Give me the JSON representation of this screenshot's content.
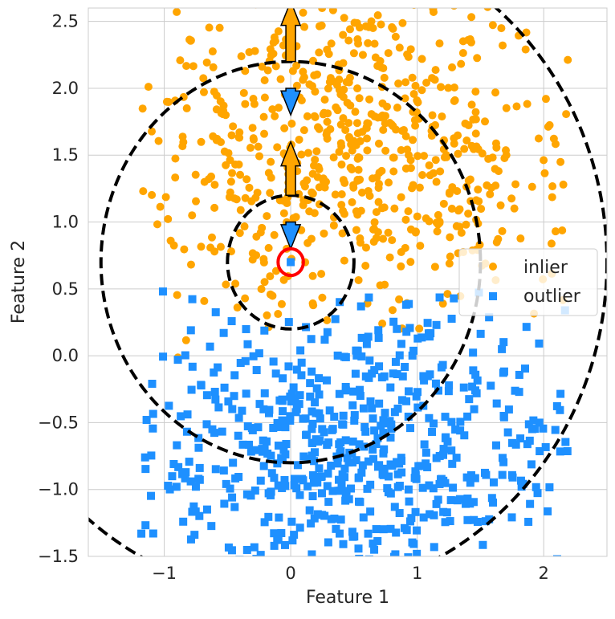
{
  "chart_data": {
    "type": "scatter",
    "title": "",
    "xlabel": "Feature 1",
    "ylabel": "Feature 2",
    "xlim": [
      -1.6,
      2.5
    ],
    "ylim": [
      -1.5,
      2.6
    ],
    "xticks": [
      -1,
      0,
      1,
      2
    ],
    "xtick_labels": [
      "−1",
      "0",
      "1",
      "2"
    ],
    "yticks": [
      -1.5,
      -1.0,
      -0.5,
      0.0,
      0.5,
      1.0,
      1.5,
      2.0,
      2.5
    ],
    "ytick_labels": [
      "−1.5",
      "−1.0",
      "−0.5",
      "0.0",
      "0.5",
      "1.0",
      "1.5",
      "2.0",
      "2.5"
    ],
    "grid": true,
    "legend": {
      "placement": "center-right",
      "entries": [
        "inlier",
        "outlier"
      ]
    },
    "series": [
      {
        "name": "inlier",
        "marker": "circle",
        "color": "#FFA500",
        "distribution": {
          "count": 650,
          "x_range": [
            -1.2,
            2.2
          ],
          "y_range": [
            -0.02,
            2.65
          ],
          "mean": [
            0.5,
            1.6
          ],
          "std": [
            0.9,
            0.65
          ]
        }
      },
      {
        "name": "outlier",
        "marker": "square",
        "color": "#1E90FF",
        "distribution": {
          "count": 600,
          "x_range": [
            -1.2,
            2.2
          ],
          "y_range": [
            -1.55,
            0.5
          ],
          "mean": [
            0.5,
            -0.7
          ],
          "std": [
            0.9,
            0.55
          ]
        }
      }
    ],
    "query_point": {
      "x": 0.0,
      "y": 0.7,
      "color": "#1E90FF",
      "highlight_color": "#FF0000",
      "highlight_radius": 0.1
    },
    "circles": [
      {
        "center": [
          0.0,
          0.7
        ],
        "radius": 0.5,
        "style": "dashed",
        "color": "#000000"
      },
      {
        "center": [
          0.0,
          0.7
        ],
        "radius": 1.5,
        "style": "dashed",
        "color": "#000000"
      },
      {
        "center": [
          0.0,
          0.7
        ],
        "radius": 2.5,
        "style": "dashed",
        "color": "#000000"
      }
    ],
    "arrows": [
      {
        "from": [
          0.0,
          2.2
        ],
        "to": [
          0.0,
          2.65
        ],
        "direction": "up",
        "color": "#FFA500"
      },
      {
        "from": [
          0.0,
          2.0
        ],
        "to": [
          0.0,
          1.8
        ],
        "direction": "down",
        "color": "#1E90FF"
      },
      {
        "from": [
          0.0,
          1.2
        ],
        "to": [
          0.0,
          1.6
        ],
        "direction": "up",
        "color": "#FFA500"
      },
      {
        "from": [
          0.0,
          1.0
        ],
        "to": [
          0.0,
          0.8
        ],
        "direction": "down",
        "color": "#1E90FF"
      }
    ]
  }
}
